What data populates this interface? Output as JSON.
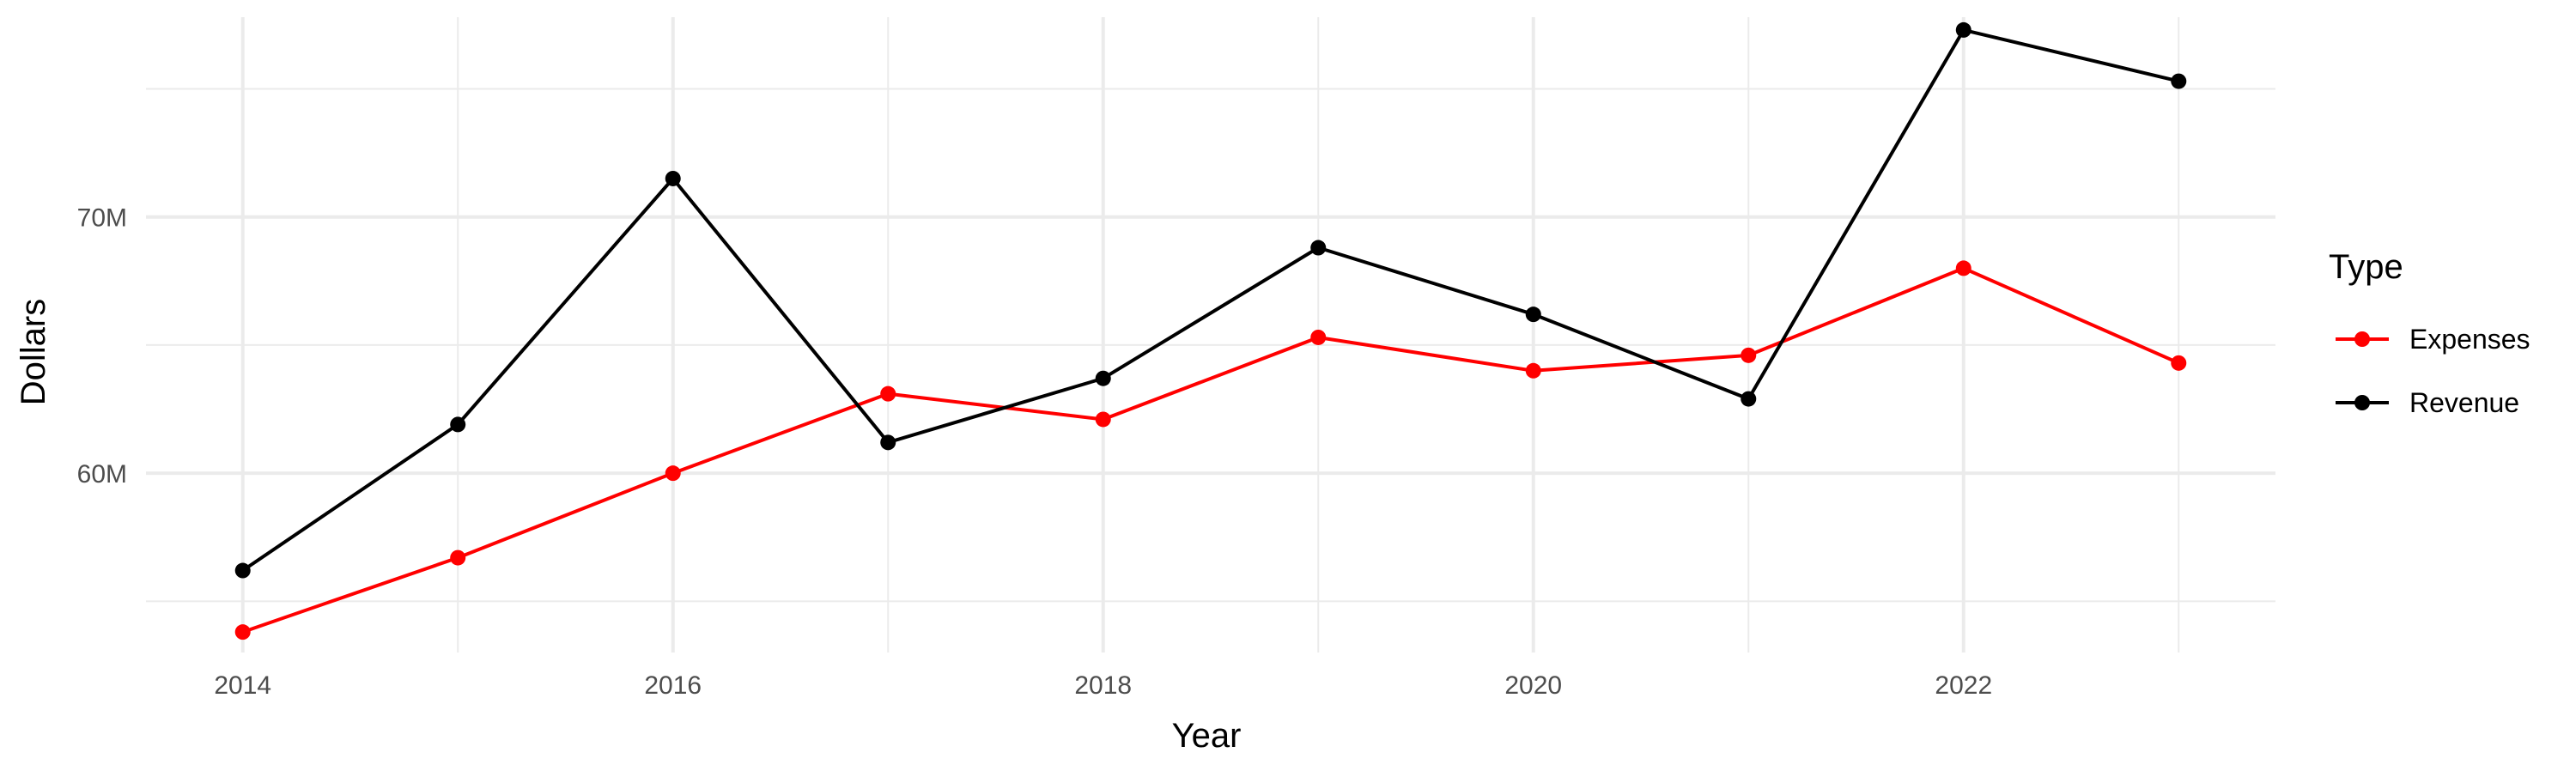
{
  "chart_data": {
    "type": "line",
    "title": "",
    "xlabel": "Year",
    "ylabel": "Dollars",
    "x": [
      2014,
      2015,
      2016,
      2017,
      2018,
      2019,
      2020,
      2021,
      2022,
      2023
    ],
    "xlim": [
      2013.55,
      2023.45
    ],
    "ylim": [
      53000000,
      77800000
    ],
    "x_ticks": [
      2014,
      2016,
      2018,
      2020,
      2022
    ],
    "x_tick_labels": [
      "2014",
      "2016",
      "2018",
      "2020",
      "2022"
    ],
    "y_ticks": [
      60000000,
      70000000
    ],
    "y_tick_labels": [
      "60M",
      "70M"
    ],
    "grid": true,
    "legend": {
      "title": "Type",
      "position": "right"
    },
    "series": [
      {
        "name": "Expenses",
        "color": "#ff0000",
        "values": [
          53800000,
          56700000,
          60000000,
          63100000,
          62100000,
          65300000,
          64000000,
          64600000,
          68000000,
          64300000
        ]
      },
      {
        "name": "Revenue",
        "color": "#000000",
        "values": [
          56200000,
          61900000,
          71500000,
          61200000,
          63700000,
          68800000,
          66200000,
          62900000,
          77300000,
          75300000
        ]
      }
    ]
  }
}
